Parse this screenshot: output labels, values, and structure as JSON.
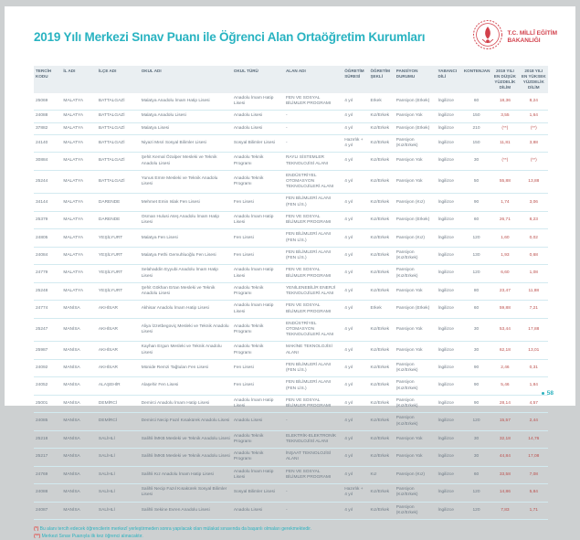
{
  "page": {
    "title": "2019 Yılı Merkezi Sınav Puanı ile Öğrenci Alan Ortaöğretim Kurumları",
    "logo": {
      "line1": "T.C. MİLLÎ EĞİTİM",
      "line2": "BAKANLIĞI"
    },
    "page_number": "58"
  },
  "colors": {
    "accent_teal": "#29b3c1",
    "brand_red": "#d2404b",
    "header_bg": "#eaeff2",
    "row_divider": "#d3eaf0",
    "value_red": "#bb4f4c"
  },
  "table": {
    "columns": [
      {
        "key": "code",
        "label": "TERCİH KODU"
      },
      {
        "key": "il",
        "label": "İL ADI"
      },
      {
        "key": "ilce",
        "label": "İLÇE ADI"
      },
      {
        "key": "okul",
        "label": "OKUL ADI"
      },
      {
        "key": "tur",
        "label": "OKUL TÜRÜ"
      },
      {
        "key": "alan",
        "label": "ALAN ADI"
      },
      {
        "key": "sure",
        "label": "ÖĞRETİM SÜRESİ"
      },
      {
        "key": "sekil",
        "label": "ÖĞRETİM ŞEKLİ"
      },
      {
        "key": "pansiyon",
        "label": "PANSİYON DURUMU"
      },
      {
        "key": "dil",
        "label": "YABANCI DİLİ"
      },
      {
        "key": "kont",
        "label": "KONTENJAN"
      },
      {
        "key": "y2019",
        "label": "2019 YILI EN DÜŞÜK YÜZDELİK DİLİM"
      },
      {
        "key": "y2018",
        "label": "2018 YILI EN YÜKSEK YÜZDELİK DİLİM"
      }
    ],
    "rows": [
      {
        "code": "25069",
        "il": "MALATYA",
        "ilce": "BATTALGAZİ",
        "okul": "Malatya Anadolu İmam Hatip Lisesi",
        "tur": "Anadolu İmam Hatip Lisesi",
        "alan": "FEN VE SOSYAL BİLİMLER PROGRAMI",
        "sure": "4 yıl",
        "sekil": "Erkek",
        "pansiyon": "Pansiyon (Erkek)",
        "dil": "İngilizce",
        "kont": "60",
        "y2019": "18,36",
        "y2018": "8,24"
      },
      {
        "code": "24088",
        "il": "MALATYA",
        "ilce": "BATTALGAZİ",
        "okul": "Malatya Anadolu Lisesi",
        "tur": "Anadolu Lisesi",
        "alan": "-",
        "sure": "4 yıl",
        "sekil": "Kız/Erkek",
        "pansiyon": "Pansiyon Yok",
        "dil": "İngilizce",
        "kont": "150",
        "y2019": "3,55",
        "y2018": "1,64"
      },
      {
        "code": "37882",
        "il": "MALATYA",
        "ilce": "BATTALGAZİ",
        "okul": "Malatya Lisesi",
        "tur": "Anadolu Lisesi",
        "alan": "-",
        "sure": "4 yıl",
        "sekil": "Kız/Erkek",
        "pansiyon": "Pansiyon (Erkek)",
        "dil": "İngilizce",
        "kont": "210",
        "y2019": "(**)",
        "y2018": "(**)"
      },
      {
        "code": "24140",
        "il": "MALATYA",
        "ilce": "BATTALGAZİ",
        "okul": "Niyazi Mısri Sosyal Bilimler Lisesi",
        "tur": "Sosyal Bilimler Lisesi",
        "alan": "-",
        "sure": "Hazırlık + 4 yıl",
        "sekil": "Kız/Erkek",
        "pansiyon": "Pansiyon (Kız/Erkek)",
        "dil": "İngilizce",
        "kont": "150",
        "y2019": "11,81",
        "y2018": "3,88"
      },
      {
        "code": "30884",
        "il": "MALATYA",
        "ilce": "BATTALGAZİ",
        "okul": "Şehit Kemal Özalper Mesleki ve Teknik Anadolu Lisesi",
        "tur": "Anadolu Teknik Programı",
        "alan": "RAYLI SİSTEMLER TEKNOLOJİSİ ALANI",
        "sure": "4 yıl",
        "sekil": "Kız/Erkek",
        "pansiyon": "Pansiyon Yok",
        "dil": "İngilizce",
        "kont": "30",
        "y2019": "(**)",
        "y2018": "(**)"
      },
      {
        "code": "25244",
        "il": "MALATYA",
        "ilce": "BATTALGAZİ",
        "okul": "Yunus Emre Mesleki ve Teknik Anadolu Lisesi",
        "tur": "Anadolu Teknik Programı",
        "alan": "ENDÜSTRİYEL OTOMASYON TEKNOLOJİLERİ ALANI",
        "sure": "4 yıl",
        "sekil": "Kız/Erkek",
        "pansiyon": "Pansiyon Yok",
        "dil": "İngilizce",
        "kont": "50",
        "y2019": "55,88",
        "y2018": "13,88"
      },
      {
        "code": "34144",
        "il": "MALATYA",
        "ilce": "DARENDE",
        "okul": "Mehmet Emin Islak Fen Lisesi",
        "tur": "Fen Lisesi",
        "alan": "FEN BİLİMLERİ ALANI (FEN LİS.)",
        "sure": "4 yıl",
        "sekil": "Kız/Erkek",
        "pansiyon": "Pansiyon (Kız)",
        "dil": "İngilizce",
        "kont": "90",
        "y2019": "1,74",
        "y2018": "3,06"
      },
      {
        "code": "25379",
        "il": "MALATYA",
        "ilce": "DARENDE",
        "okul": "Osman Hulusi Ateş Anadolu İmam Hatip Lisesi",
        "tur": "Anadolu İmam Hatip Lisesi",
        "alan": "FEN VE SOSYAL BİLİMLER PROGRAMI",
        "sure": "4 yıl",
        "sekil": "Kız/Erkek",
        "pansiyon": "Pansiyon (Erkek)",
        "dil": "İngilizce",
        "kont": "60",
        "y2019": "26,71",
        "y2018": "8,23"
      },
      {
        "code": "24805",
        "il": "MALATYA",
        "ilce": "YEŞİLYURT",
        "okul": "Malatya Fen Lisesi",
        "tur": "Fen Lisesi",
        "alan": "FEN BİLİMLERİ ALANI (FEN LİS.)",
        "sure": "4 yıl",
        "sekil": "Kız/Erkek",
        "pansiyon": "Pansiyon (Kız)",
        "dil": "İngilizce",
        "kont": "120",
        "y2019": "1,60",
        "y2018": "0,02"
      },
      {
        "code": "24084",
        "il": "MALATYA",
        "ilce": "YEŞİLYURT",
        "okul": "Malatya Fethi Gemuhluoğlu Fen Lisesi",
        "tur": "Fen Lisesi",
        "alan": "FEN BİLİMLERİ ALANI (FEN LİS.)",
        "sure": "4 yıl",
        "sekil": "Kız/Erkek",
        "pansiyon": "Pansiyon (Kız/Erkek)",
        "dil": "İngilizce",
        "kont": "130",
        "y2019": "1,93",
        "y2018": "0,68"
      },
      {
        "code": "24779",
        "il": "MALATYA",
        "ilce": "YEŞİLYURT",
        "okul": "Selahaddin Eyyubi Anadolu İmam Hatip Lisesi",
        "tur": "Anadolu İmam Hatip Lisesi",
        "alan": "FEN VE SOSYAL BİLİMLER PROGRAMI",
        "sure": "4 yıl",
        "sekil": "Kız/Erkek",
        "pansiyon": "Pansiyon (Kız/Erkek)",
        "dil": "İngilizce",
        "kont": "120",
        "y2019": "6,60",
        "y2018": "1,08"
      },
      {
        "code": "25248",
        "il": "MALATYA",
        "ilce": "YEŞİLYURT",
        "okul": "Şehit Gökhan Ertan Mesleki ve Teknik Anadolu Lisesi",
        "tur": "Anadolu Teknik Programı",
        "alan": "YENİLENEBİLİR ENERJİ TEKNOLOJİLERİ ALANI",
        "sure": "4 yıl",
        "sekil": "Kız/Erkek",
        "pansiyon": "Pansiyon Yok",
        "dil": "İngilizce",
        "kont": "80",
        "y2019": "23,47",
        "y2018": "11,88"
      },
      {
        "code": "24774",
        "il": "MANİSA",
        "ilce": "AKHİSAR",
        "okul": "Akhisar Anadolu İmam Hatip Lisesi",
        "tur": "Anadolu İmam Hatip Lisesi",
        "alan": "FEN VE SOSYAL BİLİMLER PROGRAMI",
        "sure": "4 yıl",
        "sekil": "Erkek",
        "pansiyon": "Pansiyon (Erkek)",
        "dil": "İngilizce",
        "kont": "60",
        "y2019": "59,88",
        "y2018": "7,21"
      },
      {
        "code": "25247",
        "il": "MANİSA",
        "ilce": "AKHİSAR",
        "okul": "Aliya İzzetbegoviç Mesleki ve Teknik Anadolu Lisesi",
        "tur": "Anadolu Teknik Programı",
        "alan": "ENDÜSTRİYEL OTOMASYON TEKNOLOJİLERİ ALANI",
        "sure": "4 yıl",
        "sekil": "Kız/Erkek",
        "pansiyon": "Pansiyon Yok",
        "dil": "İngilizce",
        "kont": "30",
        "y2019": "53,44",
        "y2018": "17,88"
      },
      {
        "code": "25987",
        "il": "MANİSA",
        "ilce": "AKHİSAR",
        "okul": "Kayhan Ergun Mesleki ve Teknik Anadolu Lisesi",
        "tur": "Anadolu Teknik Programı",
        "alan": "MAKİNE TEKNOLOJİSİ ALANI",
        "sure": "4 yıl",
        "sekil": "Kız/Erkek",
        "pansiyon": "Pansiyon Yok",
        "dil": "İngilizce",
        "kont": "30",
        "y2019": "62,18",
        "y2018": "13,01"
      },
      {
        "code": "24092",
        "il": "MANİSA",
        "ilce": "AKHİSAR",
        "okul": "Münide Remzi Tağtulan Fen Lisesi",
        "tur": "Fen Lisesi",
        "alan": "FEN BİLİMLERİ ALANI (FEN LİS.)",
        "sure": "4 yıl",
        "sekil": "Kız/Erkek",
        "pansiyon": "Pansiyon (Kız/Erkek)",
        "dil": "İngilizce",
        "kont": "90",
        "y2019": "2,46",
        "y2018": "0,31"
      },
      {
        "code": "24052",
        "il": "MANİSA",
        "ilce": "ALAŞEHİR",
        "okul": "Alaşehir Fen Lisesi",
        "tur": "Fen Lisesi",
        "alan": "FEN BİLİMLERİ ALANI (FEN LİS.)",
        "sure": "4 yıl",
        "sekil": "Kız/Erkek",
        "pansiyon": "Pansiyon (Kız/Erkek)",
        "dil": "İngilizce",
        "kont": "90",
        "y2019": "5,46",
        "y2018": "1,84"
      },
      {
        "code": "25001",
        "il": "MANİSA",
        "ilce": "DEMİRCİ",
        "okul": "Demirci Anadolu İmam Hatip Lisesi",
        "tur": "Anadolu İmam Hatip Lisesi",
        "alan": "FEN VE SOSYAL BİLİMLER PROGRAMI",
        "sure": "4 yıl",
        "sekil": "Kız/Erkek",
        "pansiyon": "Pansiyon (Kız/Erkek)",
        "dil": "İngilizce",
        "kont": "90",
        "y2019": "28,14",
        "y2018": "4,57"
      },
      {
        "code": "24085",
        "il": "MANİSA",
        "ilce": "DEMİRCİ",
        "okul": "Demirci Necip Fazıl Kısakürek Anadolu Lisesi",
        "tur": "Anadolu Lisesi",
        "alan": "-",
        "sure": "4 yıl",
        "sekil": "Kız/Erkek",
        "pansiyon": "Pansiyon (Kız/Erkek)",
        "dil": "İngilizce",
        "kont": "120",
        "y2019": "15,57",
        "y2018": "2,44"
      },
      {
        "code": "25218",
        "il": "MANİSA",
        "ilce": "SALİHLİ",
        "okul": "Salihli İMKB Mesleki ve Teknik Anadolu Lisesi",
        "tur": "Anadolu Teknik Programı",
        "alan": "ELEKTRİK-ELEKTRONİK TEKNOLOJİSİ ALANI",
        "sure": "4 yıl",
        "sekil": "Kız/Erkek",
        "pansiyon": "Pansiyon Yok",
        "dil": "İngilizce",
        "kont": "30",
        "y2019": "32,18",
        "y2018": "14,76"
      },
      {
        "code": "25217",
        "il": "MANİSA",
        "ilce": "SALİHLİ",
        "okul": "Salihli İMKB Mesleki ve Teknik Anadolu Lisesi",
        "tur": "Anadolu Teknik Programı",
        "alan": "İNŞAAT TEKNOLOJİSİ ALANI",
        "sure": "4 yıl",
        "sekil": "Kız/Erkek",
        "pansiyon": "Pansiyon Yok",
        "dil": "İngilizce",
        "kont": "30",
        "y2019": "44,84",
        "y2018": "17,08"
      },
      {
        "code": "24769",
        "il": "MANİSA",
        "ilce": "SALİHLİ",
        "okul": "Salihli Kız Anadolu İmam Hatip Lisesi",
        "tur": "Anadolu İmam Hatip Lisesi",
        "alan": "FEN VE SOSYAL BİLİMLER PROGRAMI",
        "sure": "4 yıl",
        "sekil": "Kız",
        "pansiyon": "Pansiyon (Kız)",
        "dil": "İngilizce",
        "kont": "60",
        "y2019": "33,58",
        "y2018": "7,08"
      },
      {
        "code": "24088",
        "il": "MANİSA",
        "ilce": "SALİHLİ",
        "okul": "Salihli Necip Fazıl Kısakürek Sosyal Bilimler Lisesi",
        "tur": "Sosyal Bilimler Lisesi",
        "alan": "-",
        "sure": "Hazırlık + 4 yıl",
        "sekil": "Kız/Erkek",
        "pansiyon": "Pansiyon (Kız/Erkek)",
        "dil": "İngilizce",
        "kont": "120",
        "y2019": "14,86",
        "y2018": "5,84"
      },
      {
        "code": "24087",
        "il": "MANİSA",
        "ilce": "SALİHLİ",
        "okul": "Salihli Sekine Evren Anadolu Lisesi",
        "tur": "Anadolu Lisesi",
        "alan": "-",
        "sure": "4 yıl",
        "sekil": "Kız/Erkek",
        "pansiyon": "Pansiyon (Kız/Erkek)",
        "dil": "İngilizce",
        "kont": "120",
        "y2019": "7,83",
        "y2018": "1,71"
      }
    ]
  },
  "footnotes": [
    {
      "marker": "(*)",
      "text": "Bu alanı tercih edecek öğrencilerin merkezî yerleştirmeden sonra yapılacak olan mülakat sınavında da başarılı olmaları gerekmektedir."
    },
    {
      "marker": "(**)",
      "text": "Merkezi Sınav Puanıyla ilk kez öğrenci alınacaktır."
    }
  ]
}
